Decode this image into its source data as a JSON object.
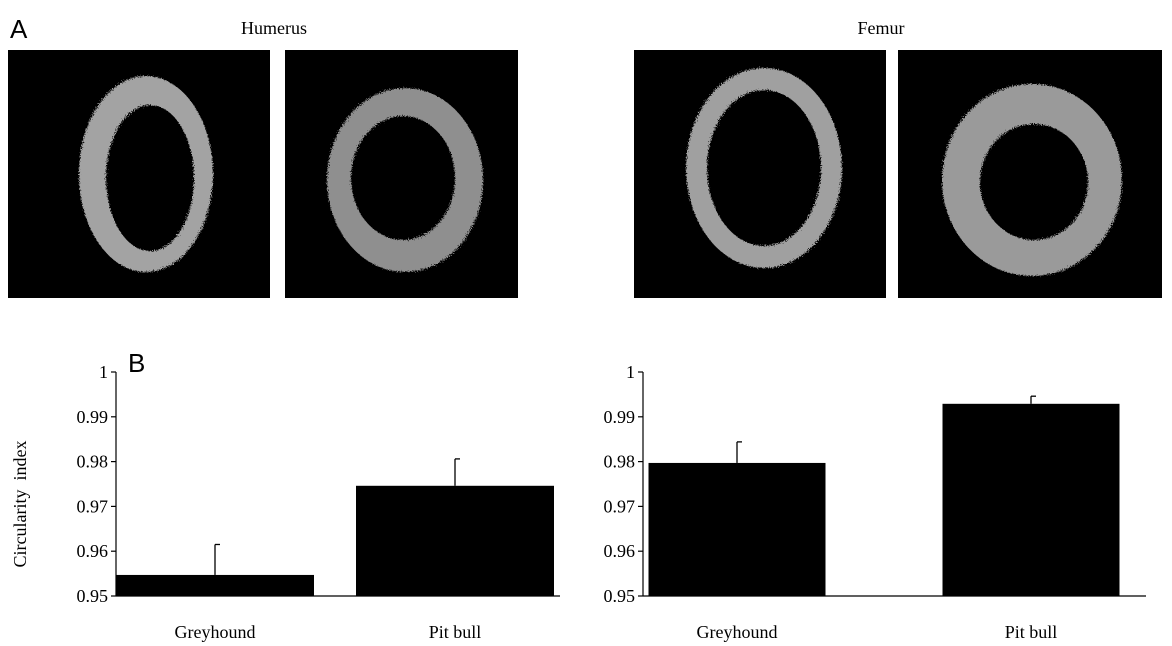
{
  "panel_labels": {
    "a": "A",
    "b": "B"
  },
  "images": {
    "humerus_title": "Humerus",
    "femur_title": "Femur",
    "samples": [
      {
        "bone": "humerus",
        "breed": "greyhound",
        "shape": "oval-tall"
      },
      {
        "bone": "humerus",
        "breed": "pit bull",
        "shape": "round-irregular"
      },
      {
        "bone": "femur",
        "breed": "greyhound",
        "shape": "oval-tall"
      },
      {
        "bone": "femur",
        "breed": "pit bull",
        "shape": "round-thick"
      }
    ]
  },
  "colors": {
    "bar": "#000000",
    "image_bg": "#000000",
    "bone": "#9a9a9a"
  },
  "chart_data": [
    {
      "type": "bar",
      "title": "",
      "xlabel": "",
      "ylabel": "Circularity  index",
      "categories": [
        "Greyhound",
        "Pit bull"
      ],
      "values": [
        0.9547,
        0.9746
      ],
      "error_plus": [
        0.0068,
        0.006
      ],
      "ylim": [
        0.95,
        1
      ],
      "yticks": [
        0.95,
        0.96,
        0.97,
        0.98,
        0.99,
        1
      ],
      "ytick_labels": [
        "0.95",
        "0.96",
        "0.97",
        "0.98",
        "0.99",
        "1"
      ]
    },
    {
      "type": "bar",
      "title": "",
      "xlabel": "",
      "ylabel": "",
      "categories": [
        "Greyhound",
        "Pit bull"
      ],
      "values": [
        0.9797,
        0.9929
      ],
      "error_plus": [
        0.0047,
        0.0017
      ],
      "ylim": [
        0.95,
        1
      ],
      "yticks": [
        0.95,
        0.96,
        0.97,
        0.98,
        0.99,
        1
      ],
      "ytick_labels": [
        "0.95",
        "0.96",
        "0.97",
        "0.98",
        "0.99",
        "1"
      ]
    }
  ]
}
